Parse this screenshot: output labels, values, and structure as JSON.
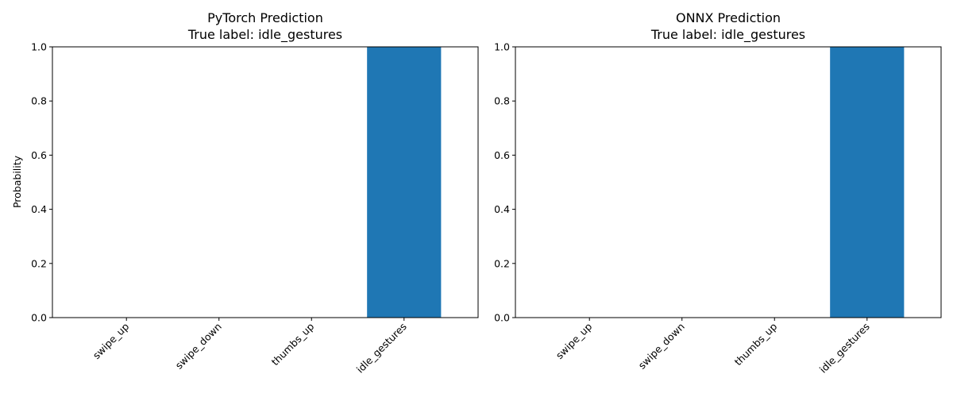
{
  "chart_data": [
    {
      "type": "bar",
      "title": "PyTorch Prediction",
      "subtitle": "True label: idle_gestures",
      "xlabel": "",
      "ylabel": "Probability",
      "categories": [
        "swipe_up",
        "swipe_down",
        "thumbs_up",
        "idle_gestures"
      ],
      "values": [
        0.0,
        0.0,
        0.0,
        1.0
      ],
      "ylim": [
        0,
        1
      ],
      "yticks": [
        "0.0",
        "0.2",
        "0.4",
        "0.6",
        "0.8",
        "1.0"
      ],
      "grid": false,
      "bar_color": "#1f77b4"
    },
    {
      "type": "bar",
      "title": "ONNX Prediction",
      "subtitle": "True label: idle_gestures",
      "xlabel": "",
      "ylabel": "",
      "categories": [
        "swipe_up",
        "swipe_down",
        "thumbs_up",
        "idle_gestures"
      ],
      "values": [
        0.0,
        0.0,
        0.0,
        1.0
      ],
      "ylim": [
        0,
        1
      ],
      "yticks": [
        "0.0",
        "0.2",
        "0.4",
        "0.6",
        "0.8",
        "1.0"
      ],
      "grid": false,
      "bar_color": "#1f77b4"
    }
  ]
}
